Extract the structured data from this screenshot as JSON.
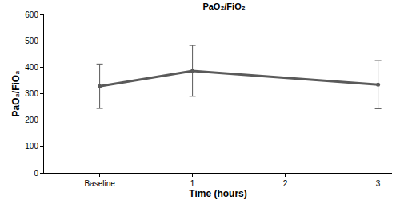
{
  "chart_data": {
    "type": "line",
    "title": "PaO₂/FiO₂",
    "x_label": "Time (hours)",
    "y_label": "PaO₂/FiO₂",
    "x": [
      0,
      1,
      3
    ],
    "values": [
      328,
      386,
      334
    ],
    "errors": [
      84,
      96,
      91
    ],
    "color": "#5a5a5a",
    "marker": "circle",
    "line_style": "solid",
    "xlim": [
      -0.6,
      3.15
    ],
    "xticks": [
      {
        "value": 0,
        "label": "Baseline"
      },
      1,
      2,
      3
    ],
    "ylim": [
      0,
      600
    ],
    "yticks": [
      0,
      100,
      200,
      300,
      400,
      500,
      600
    ],
    "grid": false
  }
}
